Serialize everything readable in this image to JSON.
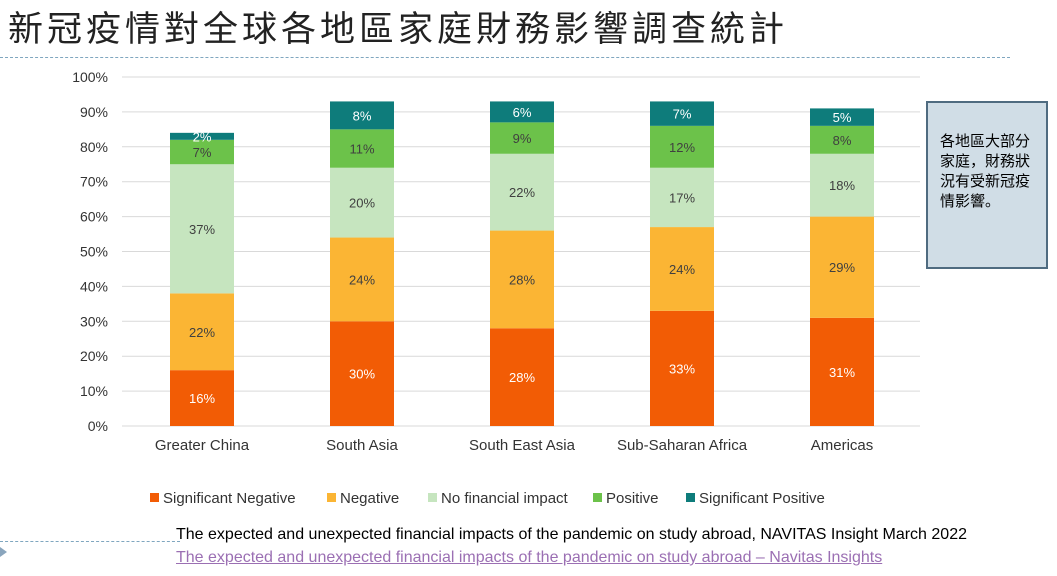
{
  "title": "新冠疫情對全球各地區家庭財務影響調查統計",
  "note": "各地區大部分家庭，財務狀況有受新冠疫情影響。",
  "source_text": "The expected and unexpected financial impacts of the pandemic on study abroad, NAVITAS Insight March 2022",
  "link_text": "The expected and unexpected financial impacts of the pandemic on study abroad – Navitas Insights",
  "chart_data": {
    "type": "bar",
    "stacked": true,
    "categories": [
      "Greater China",
      "South Asia",
      "South East Asia",
      "Sub-Saharan Africa",
      "Americas"
    ],
    "series": [
      {
        "name": "Significant Negative",
        "color": "#f25c05",
        "values": [
          16,
          30,
          28,
          33,
          31
        ]
      },
      {
        "name": "Negative",
        "color": "#fbb534",
        "values": [
          22,
          24,
          28,
          24,
          29
        ]
      },
      {
        "name": "No financial impact",
        "color": "#c6e5bf",
        "values": [
          37,
          20,
          22,
          17,
          18
        ]
      },
      {
        "name": "Positive",
        "color": "#6cc24a",
        "values": [
          7,
          11,
          9,
          12,
          8
        ]
      },
      {
        "name": "Significant Positive",
        "color": "#0e7c7b",
        "values": [
          2,
          8,
          6,
          7,
          5
        ]
      }
    ],
    "y_ticks": [
      "0%",
      "10%",
      "20%",
      "30%",
      "40%",
      "50%",
      "60%",
      "70%",
      "80%",
      "90%",
      "100%"
    ],
    "ylim": [
      0,
      100
    ],
    "grid": true,
    "legend_position": "bottom"
  }
}
